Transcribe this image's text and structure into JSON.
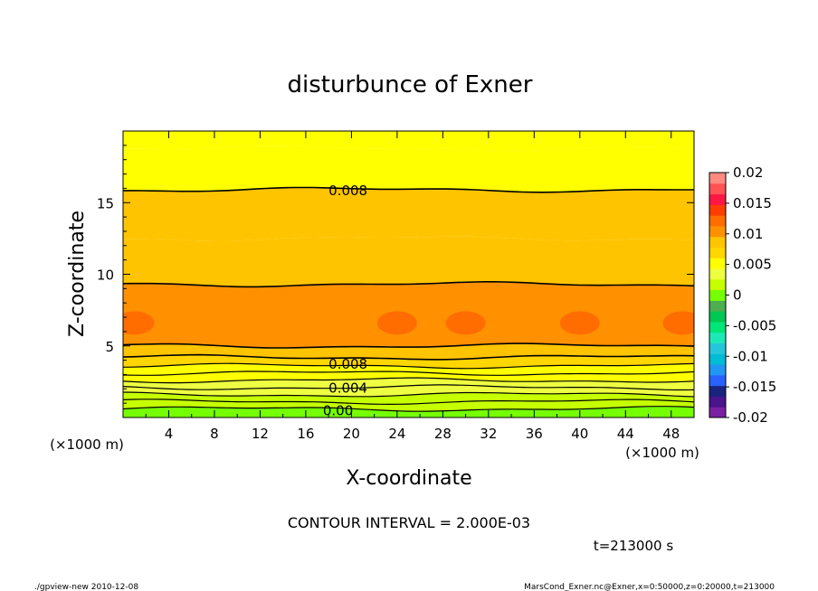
{
  "chart_data": {
    "type": "heatmap",
    "title": "disturbunce of Exner",
    "xlabel": "X-coordinate",
    "ylabel": "Z-coordinate",
    "x_unit": "(×1000 m)",
    "y_unit": "(×1000 m)",
    "xlim": [
      0,
      50
    ],
    "ylim": [
      0,
      20
    ],
    "x_ticks": [
      4,
      8,
      12,
      16,
      20,
      24,
      28,
      32,
      36,
      40,
      44,
      48
    ],
    "y_ticks": [
      5,
      10,
      15
    ],
    "colorbar": {
      "ticks": [
        "0.02",
        "0.015",
        "0.01",
        "0.005",
        "0",
        "-0.005",
        "-0.01",
        "-0.015",
        "-0.02"
      ],
      "range": [
        -0.02,
        0.02
      ],
      "colors": [
        "#7b1fa2",
        "#4a148c",
        "#1a237e",
        "#2962ff",
        "#2196f3",
        "#00bcd4",
        "#26c6da",
        "#1de9b6",
        "#00e676",
        "#00c853",
        "#4caf50",
        "#76ff03",
        "#c6ff00",
        "#eeff41",
        "#ffff00",
        "#ffd600",
        "#ffc400",
        "#ff9100",
        "#ff6d00",
        "#ff3d00",
        "#ff1744",
        "#ff5252",
        "#ff8a80"
      ]
    },
    "bands": [
      {
        "z_from": 0.0,
        "z_to": 0.6,
        "level": 0.0
      },
      {
        "z_from": 0.6,
        "z_to": 1.1,
        "level": 0.001
      },
      {
        "z_from": 1.1,
        "z_to": 1.6,
        "level": 0.002
      },
      {
        "z_from": 1.6,
        "z_to": 2.1,
        "level": 0.003
      },
      {
        "z_from": 2.1,
        "z_to": 2.6,
        "level": 0.004
      },
      {
        "z_from": 2.6,
        "z_to": 3.1,
        "level": 0.005
      },
      {
        "z_from": 3.1,
        "z_to": 3.6,
        "level": 0.006
      },
      {
        "z_from": 3.6,
        "z_to": 4.2,
        "level": 0.007
      },
      {
        "z_from": 4.2,
        "z_to": 5.0,
        "level": 0.008
      },
      {
        "z_from": 5.0,
        "z_to": 9.3,
        "level": 0.01
      },
      {
        "z_from": 9.3,
        "z_to": 12.5,
        "level": 0.009
      },
      {
        "z_from": 12.5,
        "z_to": 15.9,
        "level": 0.008
      },
      {
        "z_from": 15.9,
        "z_to": 18.8,
        "level": 0.006
      },
      {
        "z_from": 18.8,
        "z_to": 20.0,
        "level": 0.005
      }
    ],
    "contour_labels": [
      {
        "text": "0.008",
        "x": 18,
        "z": 15.9
      },
      {
        "text": "0.008",
        "x": 18,
        "z": 3.8
      },
      {
        "text": "0.004",
        "x": 18,
        "z": 2.1
      },
      {
        "text": "0.00",
        "x": 17.5,
        "z": 0.55
      }
    ],
    "contour_lines_z": [
      15.9,
      9.3,
      5.0,
      4.2,
      3.6,
      3.1,
      2.6,
      2.1,
      1.6,
      1.1,
      0.6
    ],
    "hotspots_x": [
      1,
      24,
      30,
      40,
      49
    ],
    "hotspot_z": 6.6,
    "contour_interval_text": "CONTOUR INTERVAL = 2.000E-03",
    "time_text": "t=213000  s"
  },
  "footer": {
    "left": "./gpview-new   2010-12-08",
    "right": "MarsCond_Exner.nc@Exner,x=0:50000,z=0:20000,t=213000"
  }
}
